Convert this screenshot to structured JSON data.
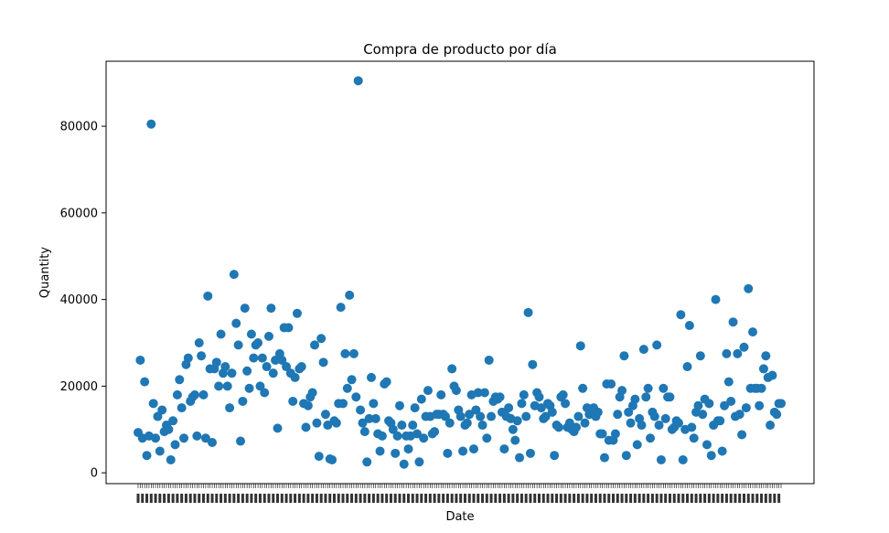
{
  "chart_data": {
    "type": "scatter",
    "title": "Compra de producto por día",
    "xlabel": "Date",
    "ylabel": "Quantity",
    "ylim": [
      -2500,
      95000
    ],
    "yticks": [
      0,
      20000,
      40000,
      60000,
      80000
    ],
    "ytick_labels": [
      "0",
      "20000",
      "40000",
      "60000",
      "80000"
    ],
    "grid": false,
    "marker_color": "#1f77b4",
    "x_tick_labels_note_overlapping": true,
    "y": [
      9300,
      26000,
      8000,
      21000,
      4000,
      8500,
      80500,
      16000,
      8000,
      13000,
      5000,
      14500,
      9500,
      11000,
      10000,
      3000,
      12000,
      6500,
      18000,
      21500,
      15000,
      8000,
      25000,
      26500,
      16500,
      17500,
      18000,
      8500,
      30000,
      27000,
      18000,
      8000,
      40800,
      24000,
      7000,
      24000,
      25500,
      20000,
      32000,
      23000,
      24500,
      20000,
      15000,
      23000,
      45800,
      34500,
      29500,
      7300,
      16500,
      38000,
      23500,
      19500,
      32000,
      26500,
      29500,
      30000,
      20000,
      26500,
      18500,
      24500,
      31500,
      38000,
      23000,
      26000,
      10300,
      27500,
      26000,
      33500,
      24500,
      33500,
      23000,
      16500,
      22000,
      36800,
      24000,
      24500,
      16000,
      10500,
      15500,
      17500,
      18500,
      29500,
      11500,
      3800,
      31000,
      25500,
      13500,
      11000,
      3200,
      3000,
      12000,
      11500,
      16000,
      38200,
      16000,
      27500,
      19500,
      41000,
      21500,
      27500,
      17500,
      90500,
      14500,
      11500,
      9500,
      2500,
      12500,
      22000,
      16000,
      12500,
      9000,
      5000,
      8500,
      20500,
      21000,
      12000,
      11500,
      10000,
      4500,
      8500,
      15500,
      11000,
      2000,
      8500,
      5500,
      8500,
      11000,
      15000,
      9000,
      2500,
      17000,
      8000,
      13000,
      19000,
      13000,
      9000,
      9500,
      13500,
      13500,
      18000,
      13500,
      13000,
      4500,
      11500,
      24000,
      20000,
      19000,
      14500,
      13000,
      5000,
      11000,
      11500,
      13500,
      18000,
      5500,
      14500,
      18500,
      13000,
      11000,
      18500,
      8000,
      26000,
      13000,
      16500,
      17500,
      17000,
      17500,
      14000,
      5500,
      13000,
      15000,
      12500,
      10000,
      7500,
      12000,
      3500,
      16000,
      18000,
      13000,
      37000,
      4500,
      25000,
      15500,
      18500,
      17500,
      15000,
      12500,
      13000,
      16000,
      15500,
      14000,
      4000,
      11000,
      10500,
      17500,
      18000,
      16000,
      10500,
      11500,
      10000,
      9500,
      10500,
      13000,
      29300,
      19500,
      11500,
      15000,
      13500,
      14000,
      15000,
      13000,
      14000,
      9000,
      9000,
      3500,
      20500,
      7500,
      20500,
      7500,
      9000,
      13500,
      17500,
      19000,
      27000,
      4000,
      14000,
      11500,
      15500,
      17000,
      6500,
      12500,
      11000,
      28500,
      17500,
      19500,
      8000,
      14000,
      13000,
      29500,
      11000,
      3000,
      19500,
      12500,
      17500,
      17500,
      10000,
      10500,
      12000,
      11500,
      36500,
      3000,
      10000,
      24500,
      34000,
      10500,
      8000,
      14000,
      15500,
      27000,
      13500,
      17000,
      6500,
      16000,
      4000,
      11000,
      40000,
      12000,
      12000,
      5000,
      15500,
      27500,
      21000,
      16500,
      34800,
      13000,
      27500,
      13500,
      8800,
      29000,
      15000,
      42500,
      19500,
      32500,
      19500,
      19500,
      15500,
      19500,
      24000,
      27000,
      22000,
      11000,
      22500,
      14000,
      13500,
      16000,
      16000
    ]
  }
}
